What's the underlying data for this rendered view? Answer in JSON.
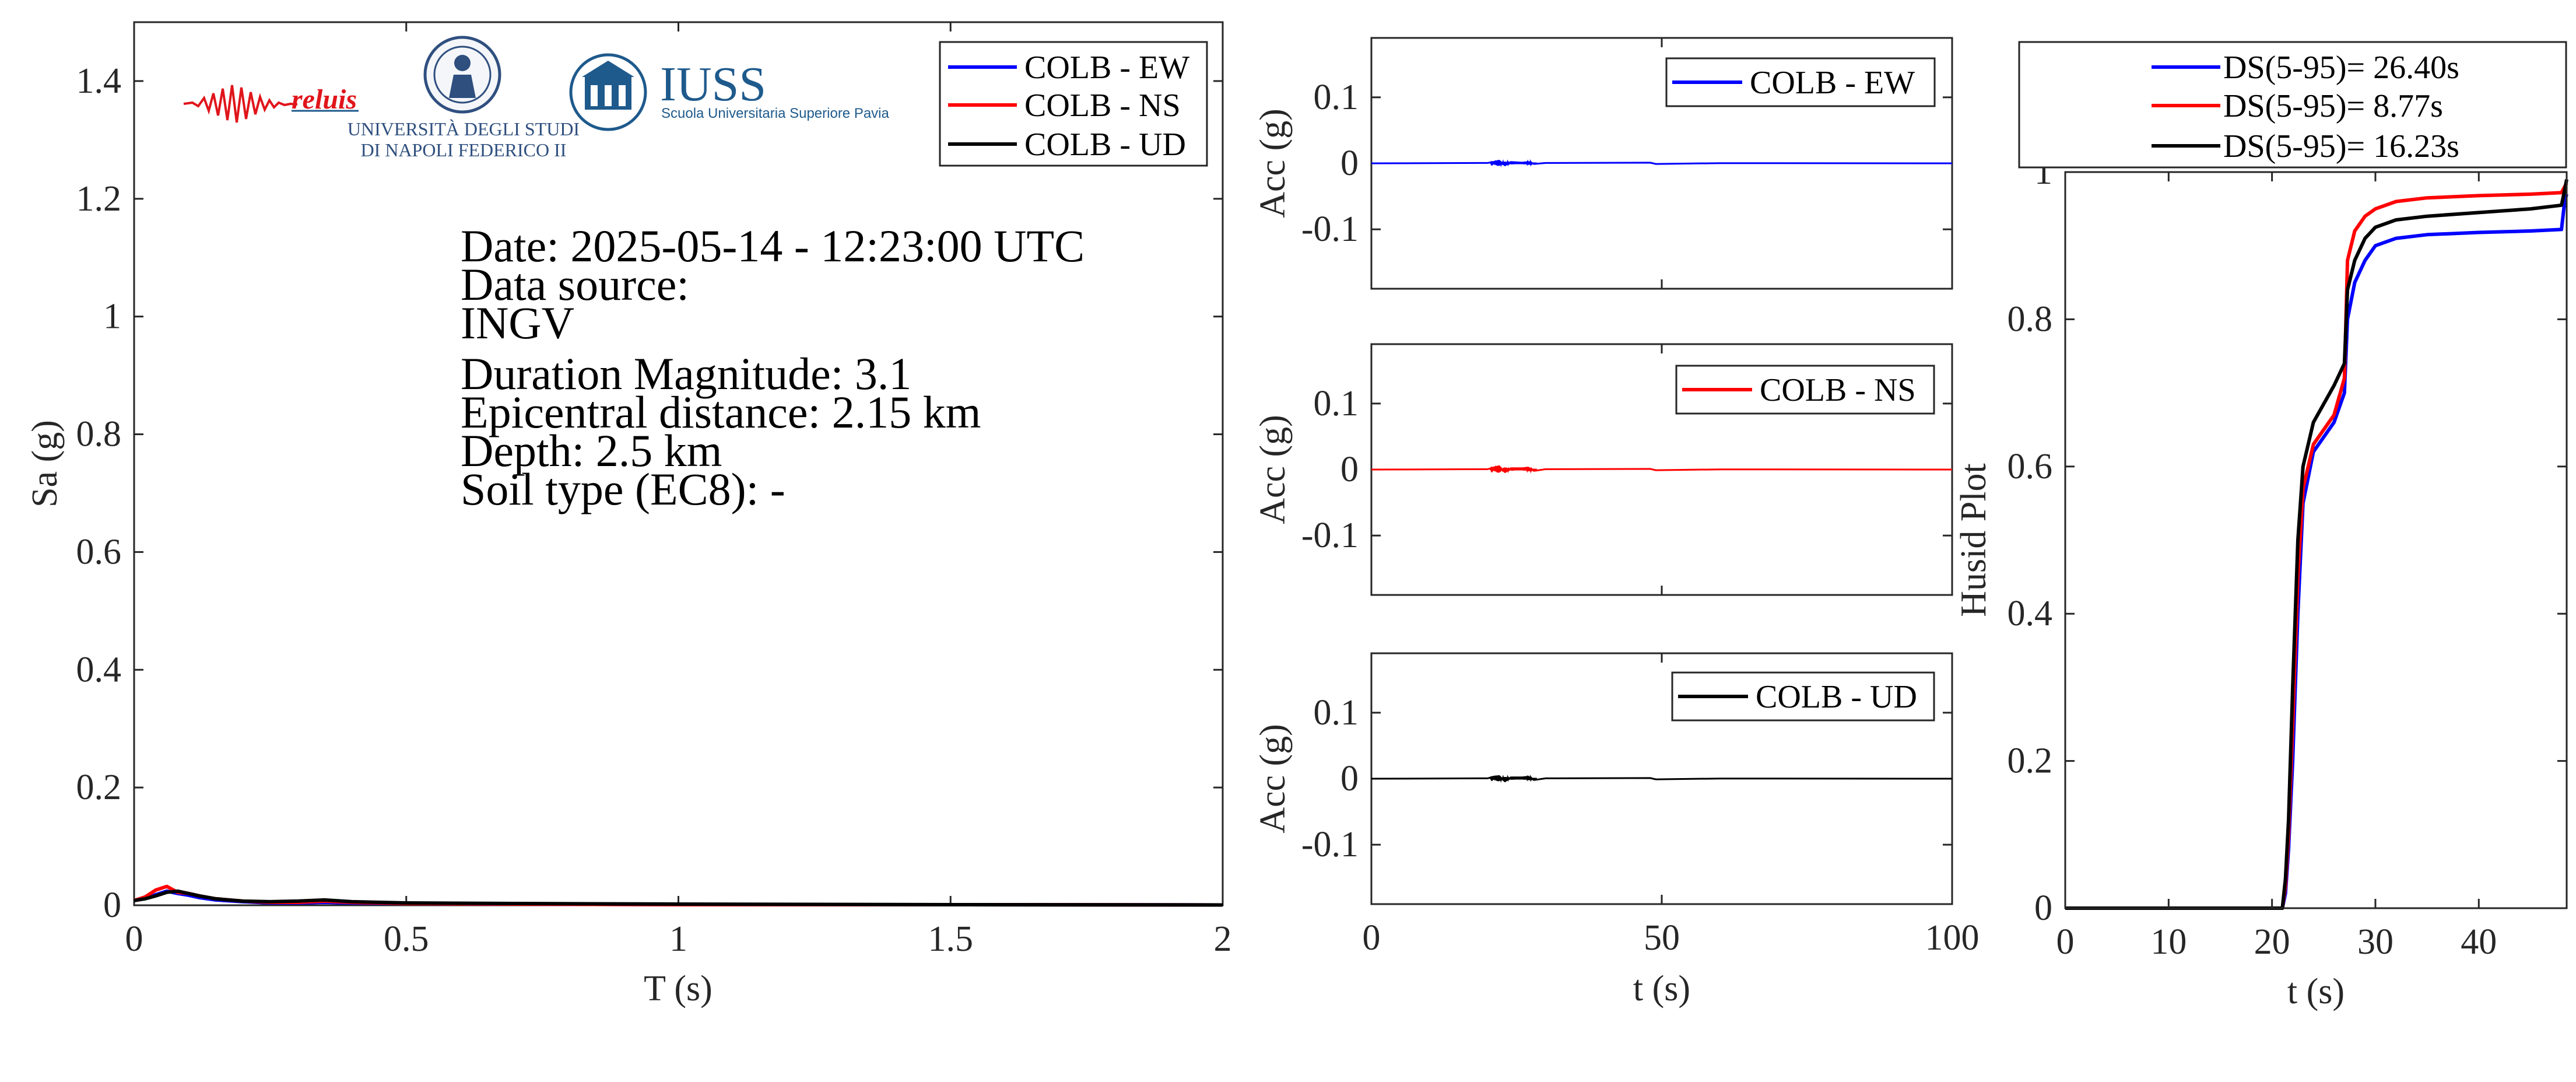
{
  "colors": {
    "ew": "#0000ff",
    "ns": "#ff0000",
    "ud": "#000000",
    "axis": "#262626",
    "logo_red": "#e0151b",
    "iuss_blue": "#1e5a8c"
  },
  "logos": {
    "reluis": "reluis",
    "unina_line1": "UNIVERSITÀ DEGLI STUDI",
    "unina_line2": "DI NAPOLI FEDERICO II",
    "iuss_title": "IUSS",
    "iuss_sub": "Scuola Universitaria Superiore Pavia"
  },
  "info": {
    "date": "Date: 2025-05-14 - 12:23:00 UTC",
    "source_label": "Data source:",
    "source": "INGV",
    "magnitude": "Duration Magnitude: 3.1",
    "distance": "Epicentral distance: 2.15 km",
    "depth": "Depth: 2.5 km",
    "soil": "Soil type (EC8): -"
  },
  "chart_data": [
    {
      "type": "line",
      "xlabel": "T (s)",
      "ylabel": "Sa (g)",
      "xlim": [
        0,
        2
      ],
      "ylim": [
        0,
        1.5
      ],
      "xticks": [
        "0",
        "0.5",
        "1",
        "1.5",
        "2"
      ],
      "yticks": [
        "0",
        "0.2",
        "0.4",
        "0.6",
        "0.8",
        "1",
        "1.2",
        "1.4"
      ],
      "legend": "top-right",
      "series": [
        {
          "name": "COLB - EW",
          "color": "#0000ff",
          "x": [
            0,
            0.02,
            0.04,
            0.06,
            0.08,
            0.1,
            0.12,
            0.15,
            0.2,
            0.25,
            0.3,
            0.35,
            0.4,
            0.5,
            0.7,
            1.0,
            1.5,
            2.0
          ],
          "y": [
            0.008,
            0.012,
            0.018,
            0.024,
            0.02,
            0.017,
            0.013,
            0.009,
            0.006,
            0.004,
            0.004,
            0.005,
            0.004,
            0.003,
            0.002,
            0.001,
            0.001,
            0.0005
          ]
        },
        {
          "name": "COLB - NS",
          "color": "#ff0000",
          "x": [
            0,
            0.02,
            0.04,
            0.06,
            0.08,
            0.1,
            0.12,
            0.15,
            0.2,
            0.25,
            0.3,
            0.35,
            0.4,
            0.5,
            0.7,
            1.0,
            1.5,
            2.0
          ],
          "y": [
            0.008,
            0.014,
            0.026,
            0.032,
            0.022,
            0.02,
            0.016,
            0.011,
            0.007,
            0.005,
            0.005,
            0.007,
            0.005,
            0.003,
            0.002,
            0.001,
            0.001,
            0.0005
          ]
        },
        {
          "name": "COLB - UD",
          "color": "#000000",
          "x": [
            0,
            0.02,
            0.04,
            0.06,
            0.08,
            0.1,
            0.12,
            0.15,
            0.2,
            0.25,
            0.3,
            0.35,
            0.4,
            0.5,
            0.7,
            1.0,
            1.5,
            2.0
          ],
          "y": [
            0.008,
            0.011,
            0.016,
            0.022,
            0.024,
            0.02,
            0.016,
            0.011,
            0.007,
            0.006,
            0.007,
            0.009,
            0.006,
            0.004,
            0.003,
            0.002,
            0.001,
            0.0005
          ]
        }
      ]
    },
    {
      "type": "line",
      "xlabel": "t (s)",
      "ylabel": "Acc (g)",
      "xlim": [
        0,
        100
      ],
      "ylim": [
        -0.19,
        0.19
      ],
      "xticks": [
        "0",
        "50",
        "100"
      ],
      "yticks": [
        "0.1",
        "0",
        "-0.1"
      ],
      "legend": "top-right",
      "series": [
        {
          "name": "COLB - EW",
          "color": "#0000ff",
          "peak": 0.004,
          "x": [
            0,
            20,
            21,
            22,
            23,
            24,
            26,
            27,
            28,
            30,
            48,
            49,
            60,
            100
          ],
          "y": [
            0,
            0.0005,
            0.002,
            0.004,
            -0.003,
            0.002,
            0.001,
            0.002,
            -0.001,
            0.0005,
            0.001,
            -0.001,
            0.0003,
            0
          ]
        }
      ]
    },
    {
      "type": "line",
      "xlabel": "",
      "ylabel": "Acc (g)",
      "xlim": [
        0,
        100
      ],
      "ylim": [
        -0.19,
        0.19
      ],
      "xticks": [],
      "yticks": [
        "0.1",
        "0",
        "-0.1"
      ],
      "legend": "top-right",
      "series": [
        {
          "name": "COLB - NS",
          "color": "#ff0000",
          "peak": 0.005,
          "x": [
            0,
            20,
            21,
            22,
            23,
            24,
            26,
            27,
            28,
            30,
            48,
            49,
            60,
            100
          ],
          "y": [
            0,
            0.0005,
            0.003,
            0.005,
            -0.004,
            0.002,
            0.002,
            0.003,
            -0.002,
            0.0005,
            0.001,
            -0.001,
            0.0003,
            0
          ]
        }
      ]
    },
    {
      "type": "line",
      "xlabel": "",
      "ylabel": "Acc (g)",
      "xlim": [
        0,
        100
      ],
      "ylim": [
        -0.19,
        0.19
      ],
      "xticks": [],
      "yticks": [
        "0.1",
        "0",
        "-0.1"
      ],
      "legend": "top-right",
      "series": [
        {
          "name": "COLB - UD",
          "color": "#000000",
          "peak": 0.004,
          "x": [
            0,
            20,
            21,
            22,
            23,
            24,
            26,
            27,
            28,
            30,
            48,
            49,
            60,
            100
          ],
          "y": [
            0,
            0.0005,
            0.003,
            0.004,
            -0.004,
            0.002,
            0.002,
            0.003,
            -0.002,
            0.0005,
            0.001,
            -0.001,
            0.0003,
            0
          ]
        }
      ]
    },
    {
      "type": "line",
      "xlabel": "t (s)",
      "ylabel": "Husid Plot",
      "xlim": [
        0,
        48.5
      ],
      "ylim": [
        0,
        1
      ],
      "xticks": [
        "0",
        "10",
        "20",
        "30",
        "40"
      ],
      "yticks": [
        "0",
        "0.2",
        "0.4",
        "0.6",
        "0.8",
        "1"
      ],
      "legend": "top",
      "series": [
        {
          "name": "DS(5-95)= 26.40s",
          "color": "#0000ff",
          "x": [
            0,
            21.0,
            21.3,
            21.6,
            22.0,
            22.5,
            23.0,
            24.0,
            26.0,
            27.0,
            27.3,
            28.0,
            29.0,
            30.0,
            32.0,
            35.0,
            40.0,
            45.0,
            48.0,
            48.3,
            48.5
          ],
          "y": [
            0,
            0,
            0.02,
            0.08,
            0.2,
            0.4,
            0.55,
            0.62,
            0.66,
            0.7,
            0.8,
            0.85,
            0.88,
            0.9,
            0.91,
            0.915,
            0.918,
            0.92,
            0.922,
            0.96,
            0.97
          ]
        },
        {
          "name": "DS(5-95)= 8.77s",
          "color": "#ff0000",
          "x": [
            0,
            21.0,
            21.3,
            21.6,
            22.0,
            22.5,
            23.0,
            24.0,
            26.0,
            27.0,
            27.3,
            28.0,
            29.0,
            30.0,
            32.0,
            35.0,
            40.0,
            45.0,
            48.0,
            48.3,
            48.5
          ],
          "y": [
            0,
            0,
            0.03,
            0.1,
            0.25,
            0.45,
            0.57,
            0.63,
            0.67,
            0.72,
            0.88,
            0.92,
            0.94,
            0.95,
            0.96,
            0.965,
            0.968,
            0.97,
            0.972,
            0.98,
            0.985
          ]
        },
        {
          "name": "DS(5-95)= 16.23s",
          "color": "#000000",
          "x": [
            0,
            21.0,
            21.3,
            21.6,
            22.0,
            22.5,
            23.0,
            24.0,
            26.0,
            27.0,
            27.3,
            28.0,
            29.0,
            30.0,
            32.0,
            35.0,
            40.0,
            45.0,
            48.0,
            48.3,
            48.5
          ],
          "y": [
            0,
            0,
            0.04,
            0.12,
            0.3,
            0.5,
            0.6,
            0.66,
            0.71,
            0.74,
            0.84,
            0.88,
            0.91,
            0.925,
            0.935,
            0.94,
            0.945,
            0.95,
            0.955,
            0.975,
            0.99
          ]
        }
      ]
    }
  ]
}
